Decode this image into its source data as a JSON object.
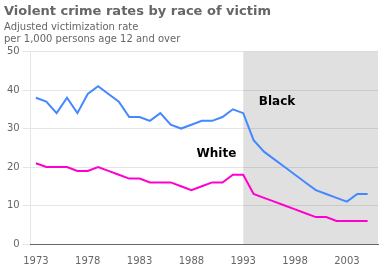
{
  "chart_data": {
    "type": "line",
    "title": "Violent crime rates by race of victim",
    "subtitle": "Adjusted victimization rate\nper 1,000 persons age 12 and over",
    "x": [
      1973,
      1974,
      1975,
      1976,
      1977,
      1978,
      1979,
      1980,
      1981,
      1982,
      1983,
      1984,
      1985,
      1986,
      1987,
      1988,
      1989,
      1990,
      1991,
      1992,
      1993,
      1994,
      1995,
      1996,
      1997,
      1998,
      1999,
      2000,
      2001,
      2002,
      2003,
      2004,
      2005
    ],
    "series": [
      {
        "color": "#4488ff",
        "values": [
          38,
          37,
          34,
          38,
          34,
          39,
          41,
          39,
          37,
          33,
          33,
          32,
          34,
          31,
          30,
          31,
          32,
          32,
          33,
          35,
          34,
          27,
          24,
          22,
          20,
          18,
          16,
          14,
          13,
          12,
          11,
          13,
          13
        ]
      },
      {
        "color": "#ff00cc",
        "values": [
          21,
          20,
          20,
          20,
          19,
          19,
          20,
          19,
          18,
          17,
          17,
          16,
          16,
          16,
          15,
          14,
          15,
          16,
          16,
          18,
          18,
          13,
          12,
          11,
          10,
          9,
          8,
          7,
          7,
          6,
          6,
          6,
          6
        ]
      }
    ],
    "annotations": [
      {
        "text": "Black",
        "x": 1994.5,
        "y": 36
      },
      {
        "text": "White",
        "x": 1988.5,
        "y": 22.5
      }
    ],
    "shaded_from": 1993,
    "xlim": [
      1972.5,
      2006
    ],
    "xticks": [
      1973,
      1978,
      1983,
      1988,
      1993,
      1998,
      2003
    ],
    "ylim": [
      0,
      50
    ],
    "yticks": [
      0,
      10,
      20,
      30,
      40,
      50
    ],
    "grid": true
  }
}
